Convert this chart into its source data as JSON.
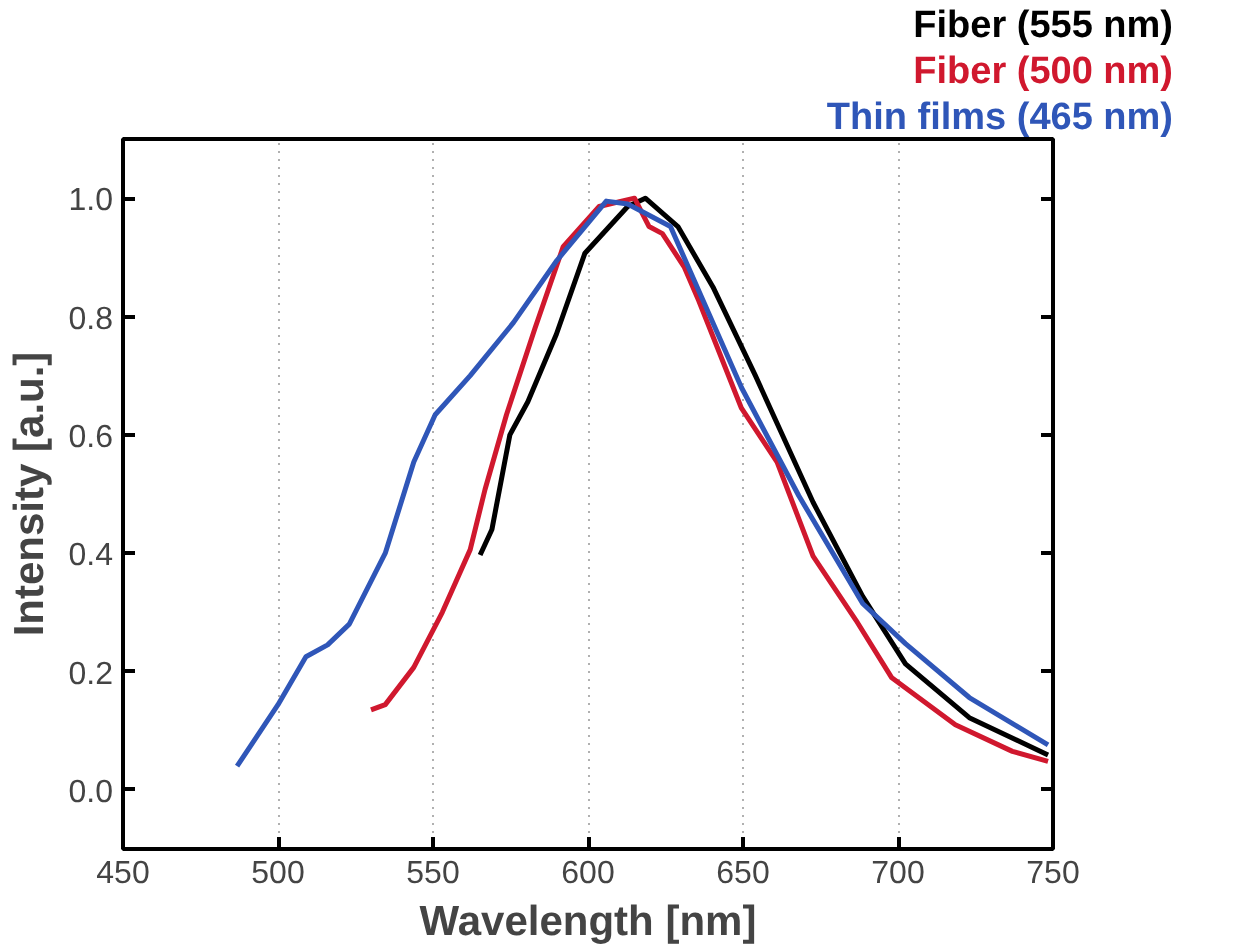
{
  "chart_data": {
    "type": "line",
    "xlabel": "Wavelength [nm]",
    "ylabel": "Intensity [a.u.]",
    "xlim": [
      450,
      750
    ],
    "xticks": [
      450,
      500,
      550,
      600,
      650,
      700,
      750
    ],
    "ylim": [
      -0.1,
      1.1
    ],
    "yticks": [
      {
        "value": 0,
        "label": "0.0"
      },
      {
        "value": 0.2,
        "label": "0.2"
      },
      {
        "value": 0.4,
        "label": "0.4"
      },
      {
        "value": 0.6,
        "label": "0.6"
      },
      {
        "value": 0.8,
        "label": "0.8"
      },
      {
        "value": 1,
        "label": "1.0"
      }
    ],
    "grid": "x",
    "legend": "top right",
    "marker": "none",
    "line_style": "solid",
    "series": [
      {
        "name": "Fiber (555 nm)",
        "color": "#000000",
        "x": [
          565.2,
          569,
          574.8,
          580.6,
          589.8,
          599,
          612.8,
          618.5,
          626.6,
          629,
          640.3,
          654,
          672.6,
          688.6,
          702.4,
          723,
          748.4
        ],
        "values": [
          0.397,
          0.44,
          0.6,
          0.656,
          0.77,
          0.907,
          0.986,
          1.0,
          0.963,
          0.952,
          0.85,
          0.7,
          0.486,
          0.327,
          0.213,
          0.122,
          0.059
        ]
      },
      {
        "name": "Fiber (500 nm)",
        "color": "#d0182e",
        "x": [
          530,
          534.6,
          543.8,
          553,
          562,
          566.8,
          573.7,
          582.9,
          592,
          603.6,
          615,
          619.7,
          624,
          631,
          635.7,
          649.5,
          661,
          672.6,
          686.4,
          697.9,
          718.5,
          736.9,
          748.4
        ],
        "values": [
          0.135,
          0.144,
          0.207,
          0.3,
          0.406,
          0.508,
          0.634,
          0.78,
          0.918,
          0.986,
          1.0,
          0.952,
          0.94,
          0.884,
          0.827,
          0.645,
          0.554,
          0.395,
          0.287,
          0.19,
          0.11,
          0.065,
          0.048
        ]
      },
      {
        "name": "Thin films (465 nm)",
        "color": "#2f56b8",
        "x": [
          486.8,
          500,
          509,
          516,
          523,
          534.6,
          543.8,
          550.7,
          562,
          576,
          590,
          605.9,
          612.8,
          626.6,
          649.5,
          668,
          688.6,
          702.4,
          723,
          748.4
        ],
        "values": [
          0.04,
          0.144,
          0.225,
          0.245,
          0.28,
          0.4,
          0.554,
          0.634,
          0.7,
          0.79,
          0.895,
          0.995,
          0.99,
          0.952,
          0.68,
          0.497,
          0.315,
          0.247,
          0.156,
          0.076
        ]
      }
    ]
  }
}
